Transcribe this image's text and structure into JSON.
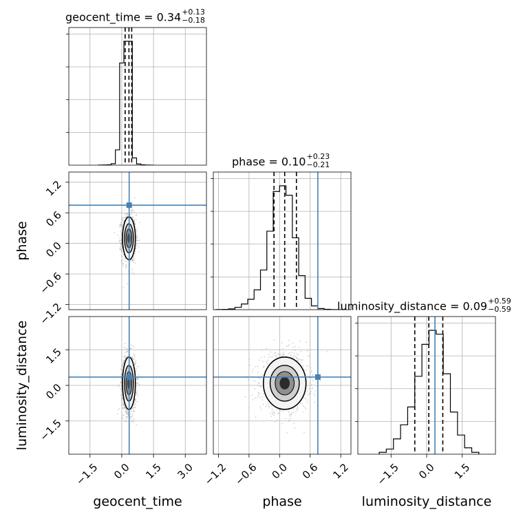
{
  "chart_data": {
    "type": "corner",
    "parameters": [
      "geocent_time",
      "phase",
      "luminosity_distance"
    ],
    "truth_values": [
      0.35,
      0.75,
      0.35
    ],
    "truth_color": "#4682b4",
    "contour_color": "#000000",
    "titles": [
      {
        "param": "geocent_time",
        "prefix": "geocent_time = 0.34",
        "upper": "+0.13",
        "lower": "−0.18"
      },
      {
        "param": "phase",
        "prefix": "phase = 0.10",
        "upper": "+0.23",
        "lower": "−0.21"
      },
      {
        "param": "luminosity_distance",
        "prefix": "luminosity_distance = 0.09",
        "upper": "+0.59",
        "lower": "−0.59"
      }
    ],
    "axes": {
      "geocent_time": {
        "range": [
          -2.5,
          4.0
        ],
        "ticks": [
          -1.5,
          0.0,
          1.5,
          3.0
        ],
        "tick_labels": [
          "−1.5",
          "0.0",
          "1.5",
          "3.0"
        ]
      },
      "phase": {
        "range": [
          -1.3,
          1.4
        ],
        "ticks": [
          -1.2,
          -0.6,
          0.0,
          0.6,
          1.2
        ],
        "tick_labels": [
          "−1.2",
          "−0.6",
          "0.0",
          "0.6",
          "1.2"
        ]
      },
      "luminosity_distance": {
        "range": [
          -2.9,
          2.9
        ],
        "ticks": [
          -1.5,
          0.0,
          1.5
        ],
        "tick_labels": [
          "−1.5",
          "0.0",
          "1.5"
        ]
      }
    },
    "histograms": [
      {
        "param": "geocent_time",
        "quantile_lines": [
          0.16,
          0.34,
          0.47
        ],
        "edges": [
          -1.1,
          -0.9,
          -0.7,
          -0.5,
          -0.3,
          -0.1,
          0.1,
          0.3,
          0.5,
          0.7,
          0.9,
          1.1,
          1.3,
          1.5
        ],
        "counts": [
          1,
          2,
          5,
          18,
          190,
          1270,
          1540,
          1540,
          90,
          15,
          4,
          1,
          0
        ]
      },
      {
        "param": "phase",
        "quantile_lines": [
          -0.11,
          0.1,
          0.33
        ],
        "edges": [
          -1.25,
          -1.125,
          -1.0,
          -0.875,
          -0.75,
          -0.625,
          -0.5,
          -0.375,
          -0.25,
          -0.125,
          0.0,
          0.125,
          0.25,
          0.375,
          0.5,
          0.625,
          0.75,
          0.875,
          1.0,
          1.125,
          1.25
        ],
        "counts": [
          1,
          3,
          8,
          25,
          60,
          110,
          210,
          420,
          830,
          1250,
          1310,
          1210,
          760,
          360,
          120,
          40,
          12,
          4,
          1,
          0
        ]
      },
      {
        "param": "luminosity_distance",
        "quantile_lines": [
          -0.5,
          0.09,
          0.68
        ],
        "edges": [
          -2.0,
          -1.7,
          -1.4,
          -1.1,
          -0.8,
          -0.5,
          -0.2,
          0.1,
          0.4,
          0.7,
          1.0,
          1.3,
          1.6,
          1.9,
          2.2
        ],
        "counts": [
          15,
          40,
          120,
          230,
          370,
          610,
          860,
          970,
          940,
          630,
          330,
          150,
          50,
          15
        ]
      }
    ],
    "scatter_stats": [
      {
        "x": "geocent_time",
        "y": "phase",
        "x_mean": 0.34,
        "x_sd": 0.16,
        "y_mean": 0.1,
        "y_sd": 0.22
      },
      {
        "x": "geocent_time",
        "y": "luminosity_distance",
        "x_mean": 0.34,
        "x_sd": 0.16,
        "y_mean": 0.09,
        "y_sd": 0.58
      },
      {
        "x": "phase",
        "y": "luminosity_distance",
        "x_mean": 0.1,
        "x_sd": 0.22,
        "y_mean": 0.09,
        "y_sd": 0.58
      }
    ]
  }
}
